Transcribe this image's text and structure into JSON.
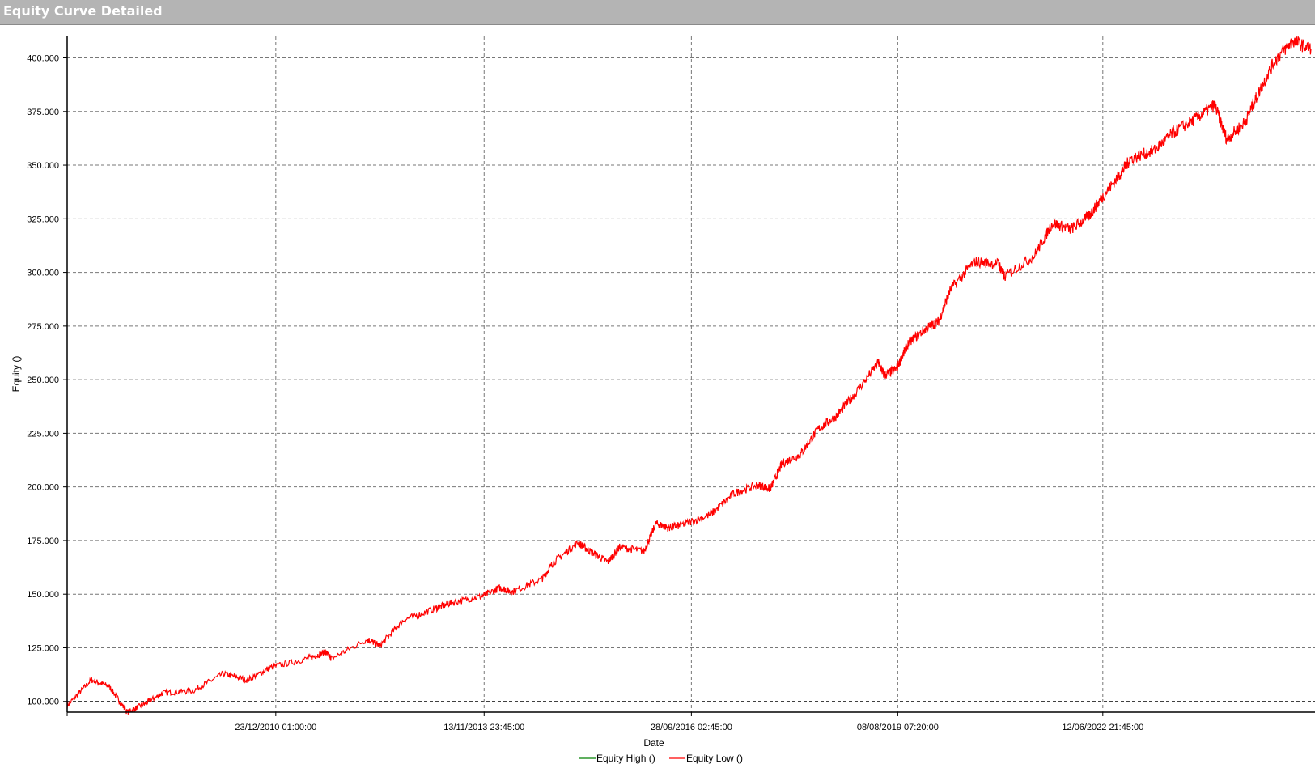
{
  "window": {
    "title": "Equity Curve Detailed"
  },
  "chart_data": {
    "type": "line",
    "title": "",
    "xlabel": "Date",
    "ylabel": "Equity ()",
    "xlim": [
      "2008-02",
      "2025-05"
    ],
    "ylim": [
      95,
      410
    ],
    "yticks": [
      100,
      125,
      150,
      175,
      200,
      225,
      250,
      275,
      300,
      325,
      350,
      375,
      400
    ],
    "ytick_labels": [
      "100.000",
      "125.000",
      "150.000",
      "175.000",
      "200.000",
      "225.000",
      "250.000",
      "275.000",
      "300.000",
      "325.000",
      "350.000",
      "375.000",
      "400.000"
    ],
    "xticks": [
      {
        "date": "2010-12-23",
        "label": "23/12/2010 01:00:00"
      },
      {
        "date": "2013-11-13",
        "label": "13/11/2013 23:45:00"
      },
      {
        "date": "2016-09-28",
        "label": "28/09/2016 02:45:00"
      },
      {
        "date": "2019-08-08",
        "label": "08/08/2019 07:20:00"
      },
      {
        "date": "2022-06-12",
        "label": "12/06/2022 21:45:00"
      }
    ],
    "grid": true,
    "legend_position": "bottom",
    "series": [
      {
        "name": "Equity High ()",
        "color": "#008000",
        "x": [],
        "y": []
      },
      {
        "name": "Equity Low ()",
        "color": "#ff0000",
        "x": [
          "2008-02",
          "2008-06",
          "2008-09",
          "2008-12",
          "2009-03",
          "2009-06",
          "2009-11",
          "2010-04",
          "2010-08",
          "2010-12",
          "2011-06",
          "2011-09",
          "2011-10",
          "2012-04",
          "2012-06",
          "2012-10",
          "2013-03",
          "2013-06",
          "2013-11",
          "2014-02",
          "2014-04",
          "2014-09",
          "2014-11",
          "2015-03",
          "2015-05",
          "2015-08",
          "2015-10",
          "2016-02",
          "2016-04",
          "2016-06",
          "2016-08",
          "2017-01",
          "2017-05",
          "2017-09",
          "2017-11",
          "2018-01",
          "2018-04",
          "2018-07",
          "2018-10",
          "2019-01",
          "2019-05",
          "2019-06",
          "2019-08",
          "2019-10",
          "2020-01",
          "2020-03",
          "2020-05",
          "2020-09",
          "2021-01",
          "2021-02",
          "2021-07",
          "2021-10",
          "2022-01",
          "2022-04",
          "2022-06",
          "2022-09",
          "2022-11",
          "2023-03",
          "2023-06",
          "2023-10",
          "2024-01",
          "2024-03",
          "2024-06",
          "2024-08",
          "2024-11",
          "2025-02",
          "2025-05"
        ],
        "y": [
          98,
          110,
          107,
          95,
          99,
          104,
          105,
          113,
          110,
          116,
          120,
          123,
          120,
          129,
          126,
          138,
          143,
          146,
          149,
          153,
          151,
          157,
          165,
          174,
          170,
          165,
          172,
          170,
          183,
          181,
          182,
          187,
          197,
          201,
          199,
          211,
          215,
          227,
          233,
          243,
          258,
          252,
          255,
          267,
          274,
          277,
          292,
          305,
          304,
          298,
          308,
          323,
          320,
          326,
          334,
          345,
          353,
          357,
          365,
          372,
          378,
          362,
          370,
          382,
          399,
          408,
          404
        ]
      }
    ]
  }
}
